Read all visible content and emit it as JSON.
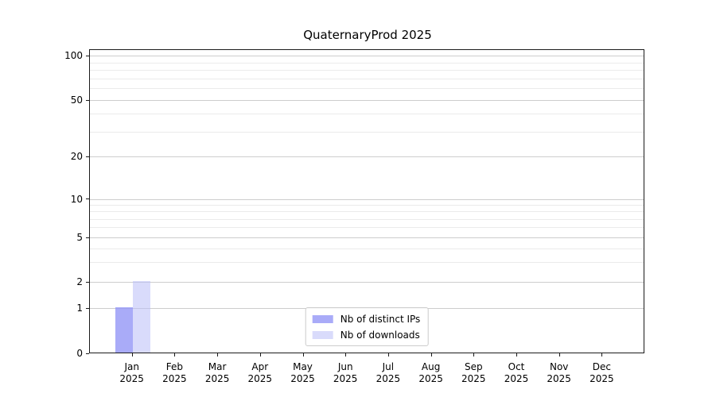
{
  "chart_data": {
    "type": "bar",
    "title": "QuaternaryProd 2025",
    "categories": [
      "Jan",
      "Feb",
      "Mar",
      "Apr",
      "May",
      "Jun",
      "Jul",
      "Aug",
      "Sep",
      "Oct",
      "Nov",
      "Dec"
    ],
    "category_year": "2025",
    "series": [
      {
        "name": "Nb of distinct IPs",
        "color": "#a9abf8",
        "values": [
          1,
          0,
          0,
          0,
          0,
          0,
          0,
          0,
          0,
          0,
          0,
          0
        ]
      },
      {
        "name": "Nb of downloads",
        "color": "#d9dbfb",
        "values": [
          2,
          0,
          0,
          0,
          0,
          0,
          0,
          0,
          0,
          0,
          0,
          0
        ]
      }
    ],
    "xlabel": "",
    "ylabel": "",
    "y_axis": {
      "scale": "log-like (compressed near zero, shows 0)",
      "major_ticks": [
        0,
        1,
        2,
        5,
        10,
        20,
        50,
        100
      ],
      "minor_gridlines": [
        3,
        4,
        6,
        7,
        8,
        9,
        30,
        40,
        60,
        70,
        80,
        90
      ],
      "range": [
        0,
        110
      ]
    },
    "legend": {
      "position": "lower center",
      "entries": [
        "Nb of distinct IPs",
        "Nb of downloads"
      ]
    },
    "grid": {
      "horizontal_major": true,
      "horizontal_minor": true,
      "vertical": false
    },
    "colors": {
      "background": "#ffffff",
      "spine": "#1a1a1a",
      "grid_major": "#cdcdcd",
      "grid_minor": "#ebebeb",
      "text": "#000000",
      "legend_border": "#cccccc"
    }
  }
}
